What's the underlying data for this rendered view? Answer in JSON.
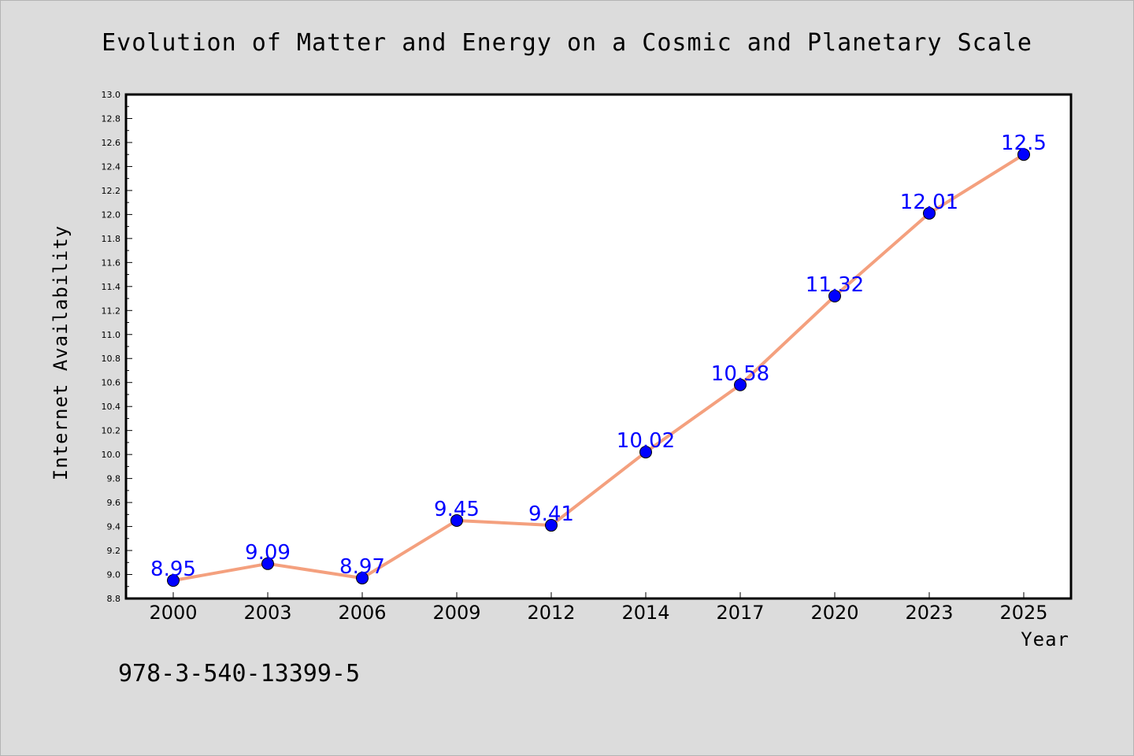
{
  "chart_data": {
    "type": "line",
    "title": "Evolution of Matter and Energy on a Cosmic and Planetary Scale",
    "xlabel": "Year",
    "ylabel": "Internet Availability",
    "categories": [
      "2000",
      "2003",
      "2006",
      "2009",
      "2012",
      "2014",
      "2017",
      "2020",
      "2023",
      "2025"
    ],
    "values": [
      8.95,
      9.09,
      8.97,
      9.45,
      9.41,
      10.02,
      10.58,
      11.32,
      12.01,
      12.5
    ],
    "data_labels": [
      "8.95",
      "9.09",
      "8.97",
      "9.45",
      "9.41",
      "10.02",
      "10.58",
      "11.32",
      "12.01",
      "12.5"
    ],
    "ylim": [
      8.8,
      13.0
    ],
    "yticks": [
      "8.8",
      "9.0",
      "9.2",
      "9.4",
      "9.6",
      "9.8",
      "10.0",
      "10.2",
      "10.4",
      "10.6",
      "10.8",
      "11.0",
      "11.2",
      "11.4",
      "11.6",
      "11.8",
      "12.0",
      "12.2",
      "12.4",
      "12.6",
      "12.8",
      "13.0"
    ],
    "grid": false,
    "line_color": "#f4a07e",
    "marker_color": "#0000ff",
    "label_color": "#0000ff",
    "background": "#dcdcdc",
    "plot_background": "#ffffff"
  },
  "annotation": "978-3-540-13399-5"
}
